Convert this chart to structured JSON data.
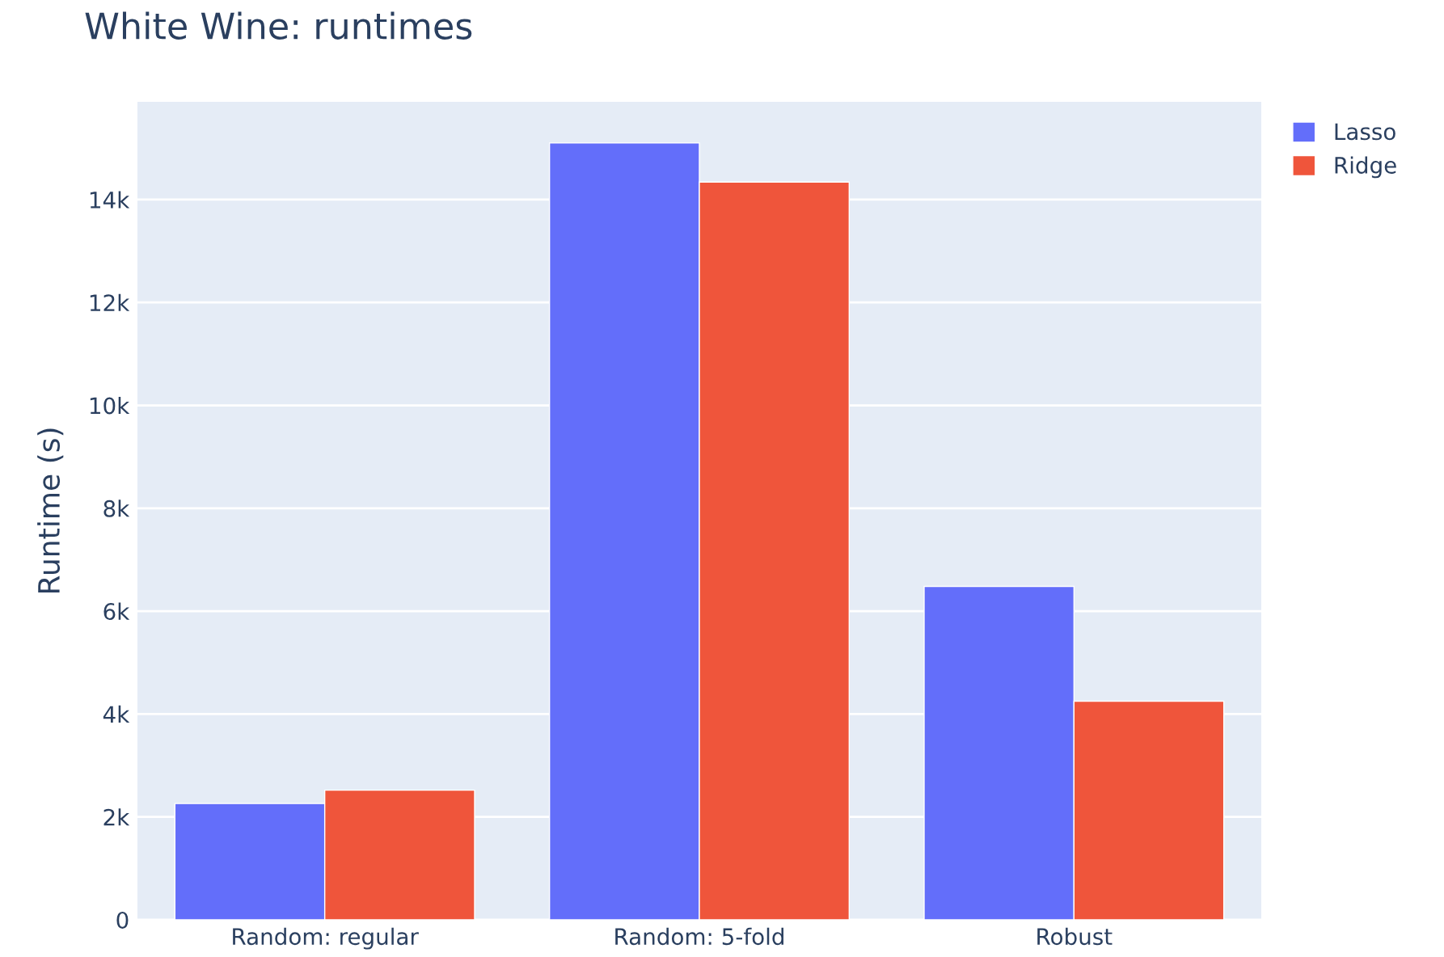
{
  "chart_data": {
    "type": "bar",
    "title": "White Wine: runtimes",
    "ylabel": "Runtime (s)",
    "categories": [
      "Random: regular",
      "Random: 5-fold",
      "Robust"
    ],
    "series": [
      {
        "name": "Lasso",
        "color": "#636efa",
        "values": [
          2260,
          15100,
          6480
        ]
      },
      {
        "name": "Ridge",
        "color": "#ef553b",
        "values": [
          2520,
          14340,
          4250
        ]
      }
    ],
    "ylim": [
      0,
      15900
    ],
    "yticks": [
      {
        "value": 0,
        "label": "0"
      },
      {
        "value": 2000,
        "label": "2k"
      },
      {
        "value": 4000,
        "label": "4k"
      },
      {
        "value": 6000,
        "label": "6k"
      },
      {
        "value": 8000,
        "label": "8k"
      },
      {
        "value": 10000,
        "label": "10k"
      },
      {
        "value": 12000,
        "label": "12k"
      },
      {
        "value": 14000,
        "label": "14k"
      }
    ],
    "grid": "y",
    "legend": "top right"
  }
}
